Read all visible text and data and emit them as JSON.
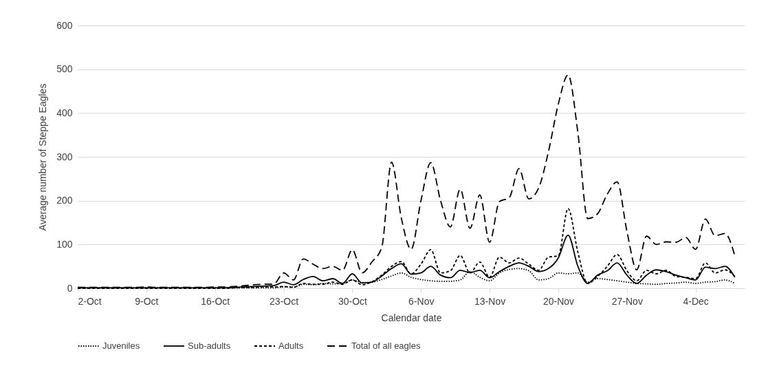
{
  "chart_data": {
    "type": "line",
    "xlabel": "Calendar date",
    "ylabel": "Average number of Steppe Eagles",
    "x": [
      "--10-02",
      "--10-03",
      "--10-04",
      "--10-05",
      "--10-06",
      "--10-07",
      "--10-08",
      "--10-09",
      "--10-10",
      "--10-11",
      "--10-12",
      "--10-13",
      "--10-14",
      "--10-15",
      "--10-16",
      "--10-17",
      "--10-18",
      "--10-19",
      "--10-20",
      "--10-21",
      "--10-22",
      "--10-23",
      "--10-24",
      "--10-25",
      "--10-26",
      "--10-27",
      "--10-28",
      "--10-29",
      "--10-30",
      "--10-31",
      "--11-01",
      "--11-02",
      "--11-03",
      "--11-04",
      "--11-05",
      "--11-06",
      "--11-07",
      "--11-08",
      "--11-09",
      "--11-10",
      "--11-11",
      "--11-12",
      "--11-13",
      "--11-14",
      "--11-15",
      "--11-16",
      "--11-17",
      "--11-18",
      "--11-19",
      "--11-20",
      "--11-21",
      "--11-22",
      "--11-23",
      "--11-24",
      "--11-25",
      "--11-26",
      "--11-27",
      "--11-28",
      "--11-29",
      "--11-30",
      "--12-01",
      "--12-02",
      "--12-03",
      "--12-04",
      "--12-05",
      "--12-06",
      "--12-07",
      "--12-08"
    ],
    "series": [
      {
        "name": "Juveniles",
        "color": "#000000",
        "line_style": "dotted",
        "values": [
          1,
          1,
          1,
          1,
          1,
          1,
          1,
          1,
          1,
          1,
          1,
          1,
          1,
          1,
          1,
          1,
          1,
          1,
          1,
          1,
          1,
          3,
          3,
          9,
          8,
          11,
          10,
          11,
          19,
          13,
          14,
          20,
          28,
          35,
          25,
          20,
          17,
          16,
          16,
          19,
          38,
          25,
          17,
          35,
          43,
          45,
          40,
          19,
          22,
          35,
          33,
          35,
          14,
          22,
          20,
          17,
          14,
          11,
          10,
          9,
          11,
          12,
          14,
          11,
          14,
          15,
          19,
          11
        ]
      },
      {
        "name": "Sub-adults",
        "color": "#000000",
        "line_style": "solid",
        "values": [
          1,
          1,
          1,
          1,
          1,
          1,
          1,
          1,
          1,
          1,
          1,
          1,
          1,
          1,
          1,
          1,
          2,
          3,
          4,
          5,
          6,
          14,
          8,
          20,
          27,
          17,
          22,
          11,
          33,
          12,
          14,
          28,
          45,
          56,
          32,
          35,
          50,
          30,
          24,
          41,
          36,
          41,
          24,
          38,
          50,
          58,
          50,
          38,
          45,
          69,
          121,
          50,
          11,
          30,
          40,
          58,
          30,
          11,
          30,
          42,
          38,
          30,
          24,
          19,
          48,
          45,
          50,
          25
        ]
      },
      {
        "name": "Adults",
        "color": "#000000",
        "line_style": "dashed",
        "values": [
          0,
          0,
          0,
          0,
          0,
          0,
          0,
          0,
          0,
          0,
          0,
          0,
          0,
          0,
          0,
          0,
          1,
          2,
          2,
          3,
          3,
          4,
          2,
          11,
          9,
          9,
          14,
          9,
          19,
          8,
          15,
          30,
          50,
          61,
          33,
          55,
          88,
          35,
          40,
          75,
          35,
          60,
          25,
          71,
          58,
          69,
          55,
          41,
          71,
          74,
          182,
          82,
          11,
          27,
          50,
          77,
          40,
          17,
          41,
          33,
          41,
          27,
          25,
          22,
          58,
          35,
          42,
          27
        ]
      },
      {
        "name": "Total of all eagles",
        "color": "#000000",
        "line_style": "dashed",
        "values": [
          2,
          2,
          2,
          2,
          2,
          2,
          2,
          3,
          2,
          2,
          2,
          2,
          2,
          2,
          3,
          3,
          4,
          6,
          8,
          9,
          10,
          35,
          19,
          67,
          55,
          45,
          50,
          41,
          88,
          35,
          60,
          93,
          288,
          160,
          89,
          200,
          287,
          200,
          140,
          226,
          137,
          213,
          105,
          198,
          207,
          273,
          204,
          229,
          312,
          420,
          487,
          355,
          159,
          170,
          215,
          243,
          130,
          42,
          119,
          100,
          106,
          105,
          116,
          89,
          158,
          120,
          125,
          74
        ]
      }
    ],
    "xlim": [
      "--10-02",
      "--12-09"
    ],
    "xticks": [
      {
        "value": "--10-02",
        "label": "2-Oct"
      },
      {
        "value": "--10-09",
        "label": "9-Oct"
      },
      {
        "value": "--10-16",
        "label": "16-Oct"
      },
      {
        "value": "--10-23",
        "label": "23-Oct"
      },
      {
        "value": "--10-30",
        "label": "30-Oct"
      },
      {
        "value": "--11-06",
        "label": "6-Nov"
      },
      {
        "value": "--11-13",
        "label": "13-Nov"
      },
      {
        "value": "--11-20",
        "label": "20-Nov"
      },
      {
        "value": "--11-27",
        "label": "27-Nov"
      },
      {
        "value": "--12-04",
        "label": "4-Dec"
      }
    ],
    "ylim": [
      0,
      600
    ],
    "yticks": [
      0,
      100,
      200,
      300,
      400,
      500,
      600
    ],
    "grid": "y",
    "legend": "bottom",
    "marker": "none"
  }
}
